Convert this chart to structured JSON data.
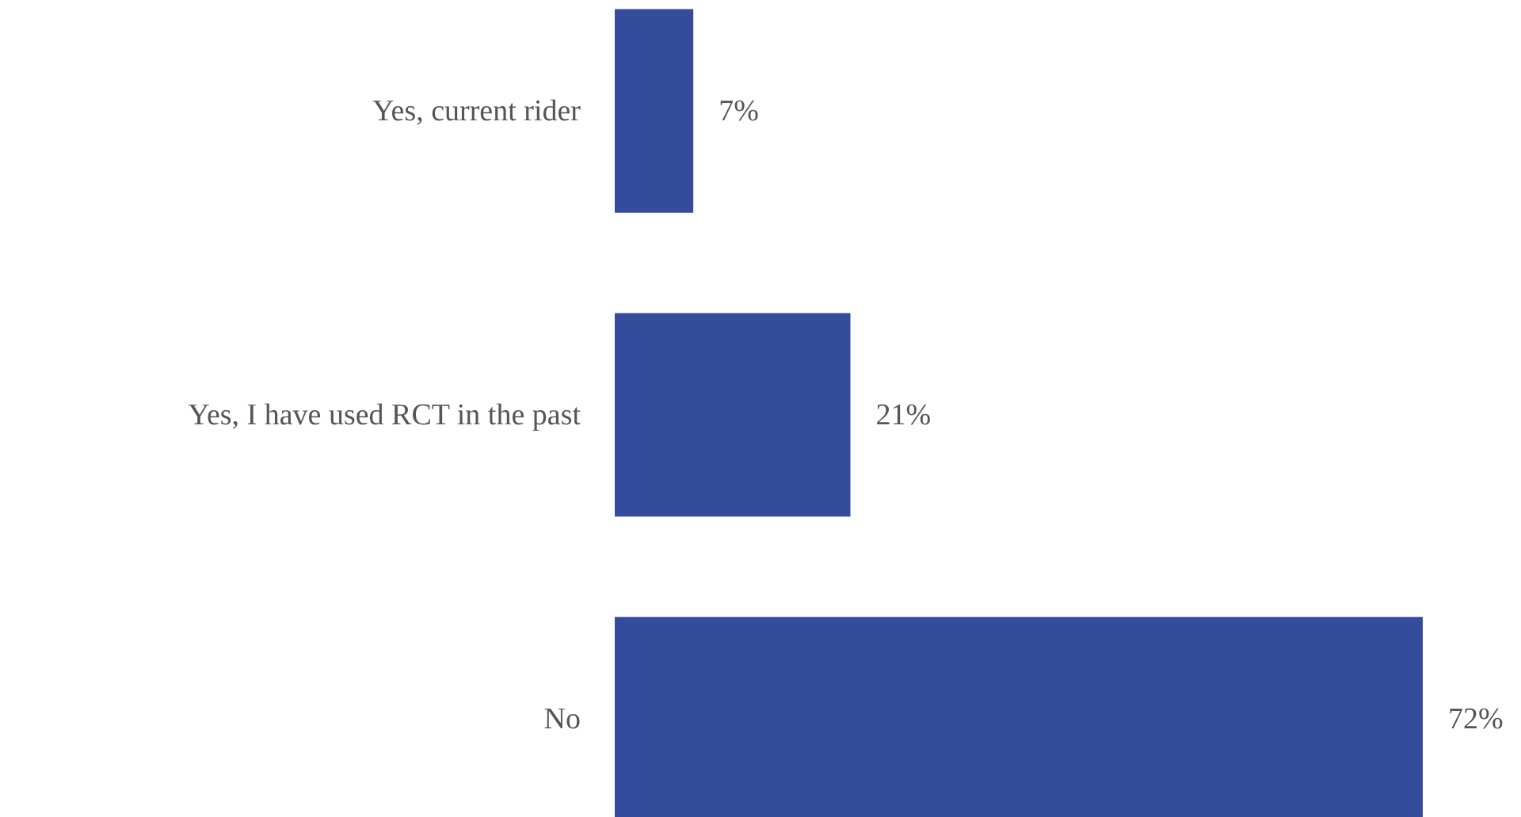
{
  "chart_data": {
    "type": "bar",
    "orientation": "horizontal",
    "categories": [
      "Yes, current rider",
      "Yes, I have used RCT in the past",
      "No"
    ],
    "values": [
      7,
      21,
      72
    ],
    "color": "#354c9c",
    "value_labels": [
      "7%",
      "21%",
      "72%"
    ]
  }
}
